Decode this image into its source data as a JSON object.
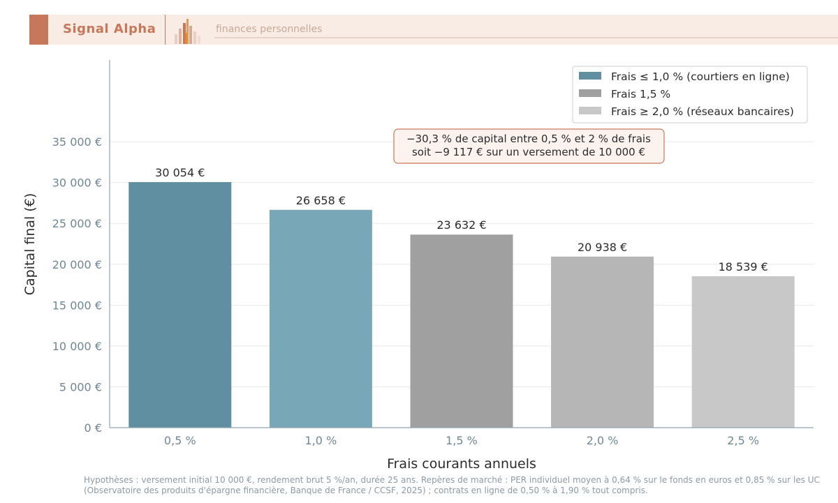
{
  "header": {
    "brand": "Signal Alpha",
    "tagline": "finances personnelles",
    "logo_icon": "bar-chart-logo-icon"
  },
  "chart_data": {
    "type": "bar",
    "categories": [
      "0,5 %",
      "1,0 %",
      "1,5 %",
      "2,0 %",
      "2,5 %"
    ],
    "values": [
      30054,
      26658,
      23632,
      20938,
      18539
    ],
    "value_labels": [
      "30 054 €",
      "26 658 €",
      "23 632 €",
      "20 938 €",
      "18 539 €"
    ],
    "bar_colors": [
      "#5f8fa0",
      "#78a7b8",
      "#a0a0a0",
      "#b6b6b6",
      "#c8c8c8"
    ],
    "xlabel": "Frais courants annuels",
    "ylabel": "Capital final (€)",
    "ylim": [
      0,
      40000
    ],
    "yticks": [
      0,
      5000,
      10000,
      15000,
      20000,
      25000,
      30000,
      35000
    ],
    "ytick_labels": [
      "0 €",
      "5 000 €",
      "10 000 €",
      "15 000 €",
      "20 000 €",
      "25 000 €",
      "30 000 €",
      "35 000 €"
    ],
    "grid": true,
    "legend_position": "top-right",
    "legend": [
      {
        "label": "Frais ≤ 1,0 % (courtiers en ligne)",
        "color": "#5f8fa0"
      },
      {
        "label": "Frais 1,5 %",
        "color": "#a0a0a0"
      },
      {
        "label": "Frais ≥ 2,0 % (réseaux bancaires)",
        "color": "#c8c8c8"
      }
    ],
    "annotation": {
      "line1": "−30,3 % de capital entre 0,5 % et 2 % de frais",
      "line2": "soit −9 117 € sur un versement de 10 000 €",
      "border_color": "#c8785a"
    }
  },
  "footnote": {
    "line1": "Hypothèses : versement initial 10 000 €, rendement brut 5 %/an, durée 25 ans. Repères de marché : PER individuel moyen à 0,64 % sur le fonds en euros et 0,85 % sur les UC",
    "line2": "(Observatoire des produits d'épargne financière, Banque de France / CCSF, 2025) ; contrats en ligne de 0,50 % à 1,90 % tout compris."
  }
}
